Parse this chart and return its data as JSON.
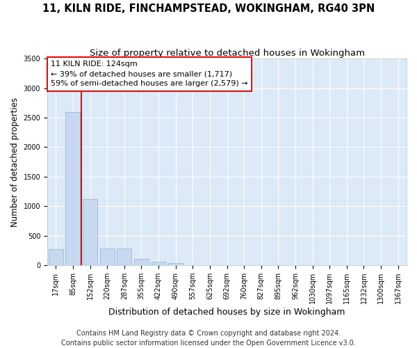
{
  "title": "11, KILN RIDE, FINCHAMPSTEAD, WOKINGHAM, RG40 3PN",
  "subtitle": "Size of property relative to detached houses in Wokingham",
  "xlabel": "Distribution of detached houses by size in Wokingham",
  "ylabel": "Number of detached properties",
  "categories": [
    "17sqm",
    "85sqm",
    "152sqm",
    "220sqm",
    "287sqm",
    "355sqm",
    "422sqm",
    "490sqm",
    "557sqm",
    "625sqm",
    "692sqm",
    "760sqm",
    "827sqm",
    "895sqm",
    "962sqm",
    "1030sqm",
    "1097sqm",
    "1165sqm",
    "1232sqm",
    "1300sqm",
    "1367sqm"
  ],
  "values": [
    270,
    2600,
    1120,
    290,
    285,
    110,
    60,
    35,
    0,
    0,
    0,
    0,
    0,
    0,
    0,
    0,
    0,
    0,
    0,
    0,
    0
  ],
  "bar_color": "#c6d9f0",
  "bar_edge_color": "#9ab8d8",
  "vline_between": [
    1,
    2
  ],
  "vline_color": "red",
  "annotation_line1": "11 KILN RIDE: 124sqm",
  "annotation_line2": "← 39% of detached houses are smaller (1,717)",
  "annotation_line3": "59% of semi-detached houses are larger (2,579) →",
  "annotation_box_color": "white",
  "annotation_box_edge_color": "red",
  "ylim": [
    0,
    3500
  ],
  "yticks": [
    0,
    500,
    1000,
    1500,
    2000,
    2500,
    3000,
    3500
  ],
  "background_color": "#dce9f7",
  "grid_color": "white",
  "footer_line1": "Contains HM Land Registry data © Crown copyright and database right 2024.",
  "footer_line2": "Contains public sector information licensed under the Open Government Licence v3.0.",
  "title_fontsize": 10.5,
  "subtitle_fontsize": 9.5,
  "xlabel_fontsize": 9,
  "ylabel_fontsize": 8.5,
  "tick_fontsize": 7,
  "annotation_fontsize": 8,
  "footer_fontsize": 7
}
